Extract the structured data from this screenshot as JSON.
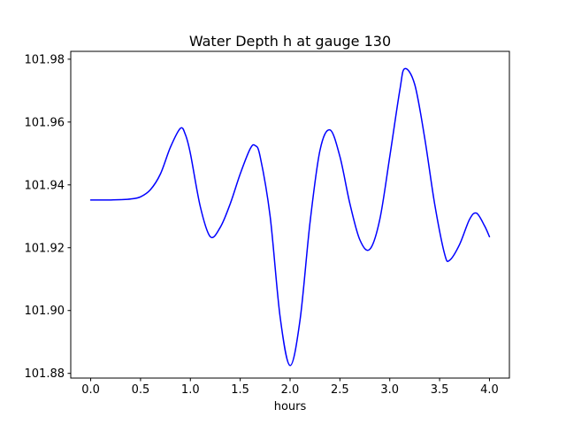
{
  "figure": {
    "background": "#ffffff"
  },
  "chart_data": {
    "type": "line",
    "title": "Water Depth h at gauge 130",
    "xlabel": "hours",
    "ylabel": "",
    "grid": false,
    "legend": "none",
    "line_color": "#0000ff",
    "line_width": 1.5,
    "axis_color": "#000000",
    "xlim": [
      -0.2,
      4.2
    ],
    "ylim": [
      101.8785,
      101.9825
    ],
    "xticks": [
      0.0,
      0.5,
      1.0,
      1.5,
      2.0,
      2.5,
      3.0,
      3.5,
      4.0
    ],
    "yticks": [
      101.88,
      101.9,
      101.92,
      101.94,
      101.96,
      101.98
    ],
    "xtick_decimals": 1,
    "ytick_decimals": 2,
    "series": [
      {
        "name": "h",
        "x": [
          0.0,
          0.1,
          0.2,
          0.3,
          0.4,
          0.5,
          0.6,
          0.7,
          0.8,
          0.9,
          0.95,
          1.0,
          1.1,
          1.2,
          1.3,
          1.4,
          1.5,
          1.6,
          1.65,
          1.7,
          1.8,
          1.9,
          2.0,
          2.1,
          2.2,
          2.3,
          2.4,
          2.5,
          2.6,
          2.7,
          2.8,
          2.9,
          3.0,
          3.1,
          3.15,
          3.25,
          3.35,
          3.45,
          3.55,
          3.6,
          3.7,
          3.8,
          3.87,
          3.95,
          4.0
        ],
        "y": [
          101.9352,
          101.9352,
          101.9352,
          101.9353,
          101.9355,
          101.9362,
          101.9385,
          101.9435,
          101.952,
          101.958,
          101.956,
          101.95,
          101.933,
          101.9235,
          101.9265,
          101.934,
          101.9435,
          101.9515,
          101.9525,
          101.949,
          101.93,
          101.898,
          101.8825,
          101.897,
          101.928,
          101.951,
          101.9575,
          101.949,
          101.934,
          101.9225,
          101.9195,
          101.929,
          101.949,
          101.97,
          101.977,
          101.972,
          101.955,
          101.934,
          101.918,
          101.916,
          101.921,
          101.929,
          101.931,
          101.927,
          101.9235
        ]
      }
    ]
  }
}
